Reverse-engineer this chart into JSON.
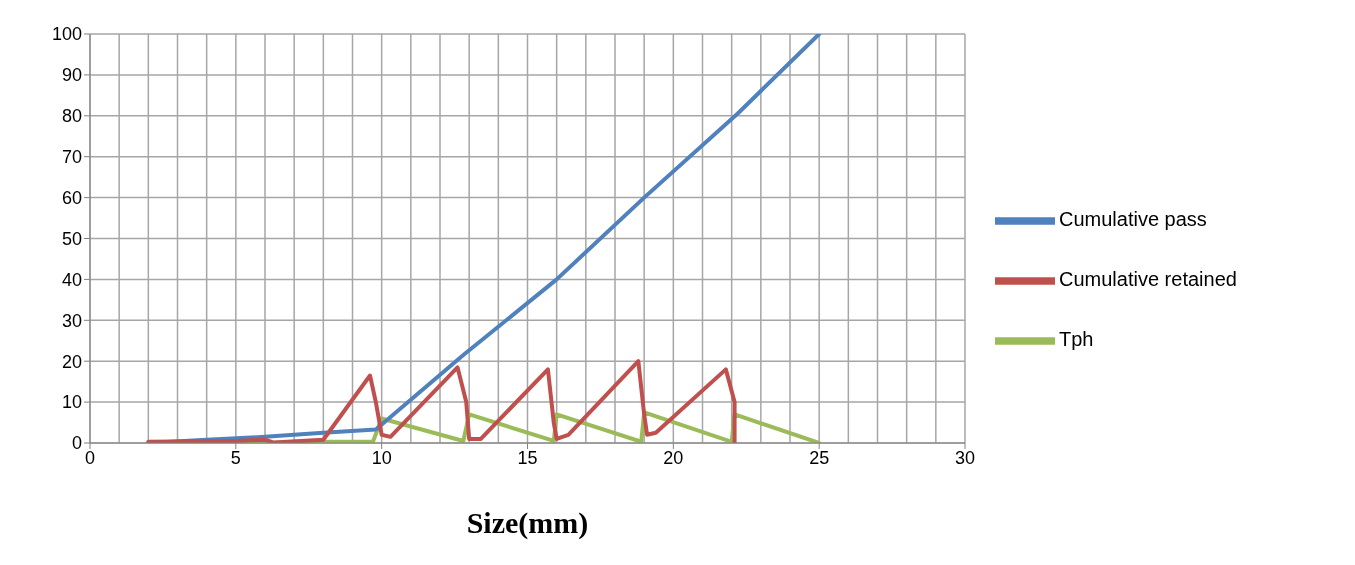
{
  "chart_data": {
    "type": "line",
    "xlabel": "Size(mm)",
    "xlim": [
      0,
      30
    ],
    "xticks": [
      0,
      5,
      10,
      15,
      20,
      25,
      30
    ],
    "ylim": [
      0,
      100
    ],
    "yticks": [
      0,
      10,
      20,
      30,
      40,
      50,
      60,
      70,
      80,
      90,
      100
    ],
    "grid": true,
    "legend": "right",
    "marker": "none",
    "line_style": "solid",
    "series": [
      {
        "name": "Tph",
        "color": "#9bbb59",
        "x": [
          2,
          6,
          8,
          9.7,
          10,
          12.8,
          13,
          15.9,
          16,
          18.9,
          19,
          22,
          22.1,
          25
        ],
        "values": [
          0,
          0,
          0.3,
          0.3,
          6,
          0.5,
          7,
          0.5,
          7,
          0.3,
          7.5,
          0.3,
          7,
          0
        ]
      },
      {
        "name": "Cumulative pass",
        "color": "#4f81bd",
        "x": [
          2,
          4,
          6,
          8,
          9.8,
          12.8,
          16,
          19,
          22.2,
          25
        ],
        "values": [
          0,
          0.8,
          1.5,
          2.5,
          3.3,
          21.5,
          40,
          60,
          80.5,
          100
        ]
      },
      {
        "name": "Cumulative retained",
        "color": "#c0504d",
        "x": [
          2,
          5,
          6,
          6.3,
          8,
          9.6,
          9.8,
          10,
          10.3,
          12.6,
          12.9,
          13,
          13.4,
          15.7,
          15.9,
          16,
          16.4,
          18.8,
          19,
          19.1,
          19.4,
          21.8,
          22.1,
          22.1
        ],
        "values": [
          0.3,
          0.5,
          0.8,
          0.1,
          0.8,
          16.5,
          10,
          2,
          1.5,
          18.5,
          10,
          1,
          1,
          18,
          5,
          1,
          2,
          20,
          7,
          2,
          2.5,
          18,
          10,
          0
        ]
      }
    ]
  }
}
